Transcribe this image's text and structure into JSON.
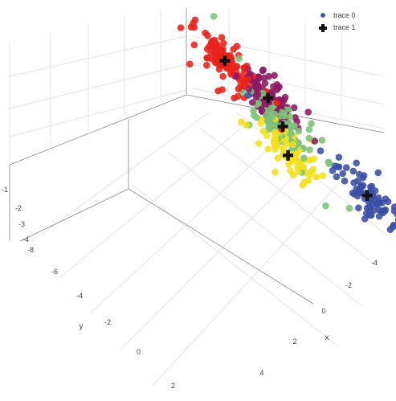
{
  "chart_data": {
    "type": "scatter",
    "title": "",
    "legend": {
      "placement": "top-right",
      "entries": [
        {
          "name": "trace 0",
          "symbol": "circle",
          "color": "#4a5aa8"
        },
        {
          "name": "trace 1",
          "symbol": "cross",
          "color": "#111111"
        }
      ]
    },
    "axes": {
      "x": {
        "label": "x",
        "ticks": [
          "-4",
          "-2",
          "0",
          "2",
          "4"
        ]
      },
      "y": {
        "label": "y",
        "ticks": [
          "-8",
          "-6",
          "-4",
          "-2",
          "0",
          "2"
        ]
      },
      "z": {
        "label": "",
        "ticks": [
          "-1",
          "-2",
          "-3",
          "-4"
        ]
      }
    },
    "grid": true,
    "cluster_colors": [
      "#e8221c",
      "#f2e01e",
      "#7cc27a",
      "#8b1a62",
      "#3a4fa5"
    ],
    "series": [
      {
        "name": "trace 0",
        "mode": "markers",
        "clusters": [
          {
            "color": "#e8221c",
            "centroid": [
              1.2,
              -2.9,
              -3.6
            ],
            "count": 95
          },
          {
            "color": "#f2e01e",
            "centroid": [
              -1.7,
              -2.1,
              -1.4
            ],
            "count": 70
          },
          {
            "color": "#7cc27a",
            "centroid": [
              -0.9,
              -1.5,
              -2.6
            ],
            "count": 85
          },
          {
            "color": "#8b1a62",
            "centroid": [
              0.6,
              -0.7,
              -3.6
            ],
            "count": 110
          },
          {
            "color": "#3a4fa5",
            "centroid": [
              -3.4,
              1.2,
              -2.4
            ],
            "count": 80
          }
        ]
      },
      {
        "name": "trace 1",
        "mode": "markers",
        "symbol": "cross",
        "points": [
          {
            "x": 1.2,
            "y": -2.9,
            "z": -3.6
          },
          {
            "x": -1.7,
            "y": -2.1,
            "z": -1.4
          },
          {
            "x": -0.9,
            "y": -1.5,
            "z": -2.6
          },
          {
            "x": 0.6,
            "y": -0.7,
            "z": -3.6
          },
          {
            "x": -3.4,
            "y": 1.2,
            "z": -2.4
          }
        ]
      }
    ]
  }
}
